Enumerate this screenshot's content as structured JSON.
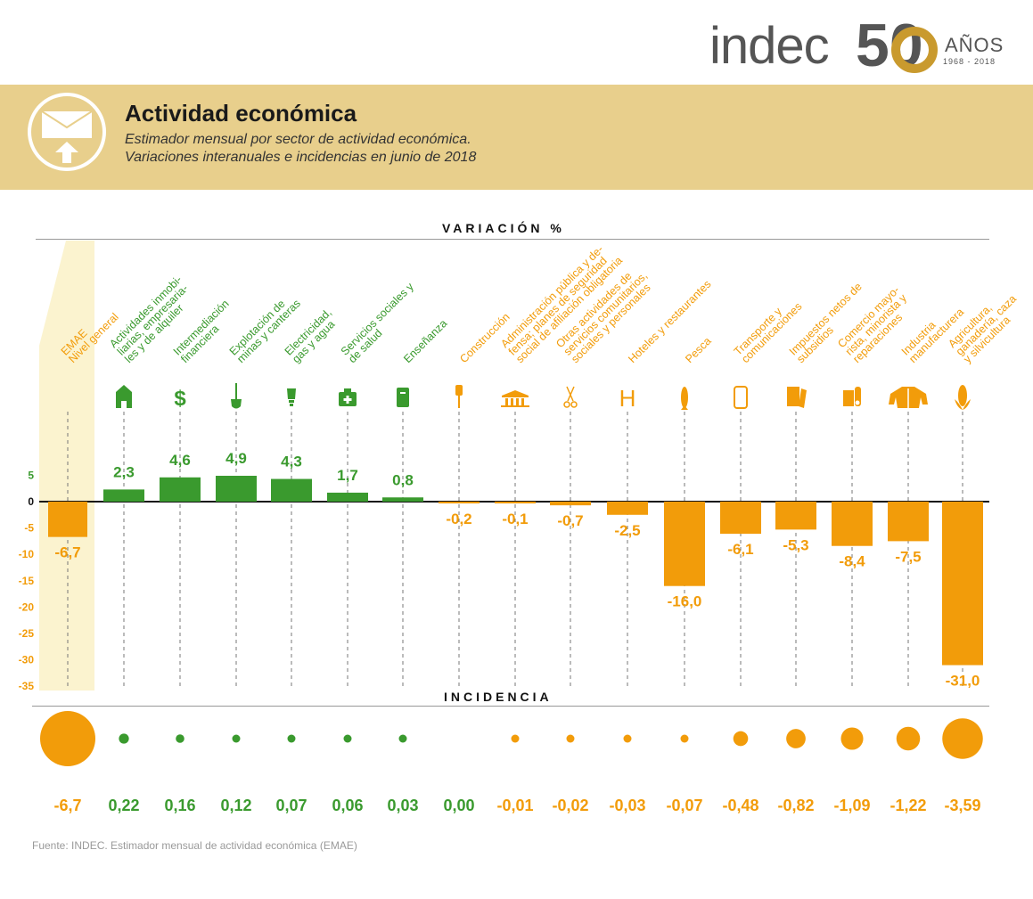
{
  "header": {
    "logo_text": "indec",
    "anniversary_number": "50",
    "anniversary_label": "AÑOS",
    "anniversary_years": "1968 - 2018"
  },
  "banner": {
    "title": "Actividad económica",
    "subtitle_line1": "Estimador mensual por sector de actividad económica.",
    "subtitle_line2": "Variaciones interanuales e incidencias en junio de 2018"
  },
  "sections": {
    "variation": "VARIACIÓN %",
    "incidence": "INCIDENCIA"
  },
  "source": "Fuente: INDEC. Estimador mensual de actividad económica (EMAE)",
  "colors": {
    "positive": "#3a9a2e",
    "negative": "#f29c0a",
    "highlight_band": "#fbf3cf",
    "banner": "#e8cf8c"
  },
  "chart_data": {
    "type": "bar",
    "ylim": [
      -35,
      5
    ],
    "yticks": [
      "5",
      "0",
      "-5",
      "-10",
      "-15",
      "-20",
      "-25",
      "-30",
      "-35"
    ],
    "categories": [
      {
        "label": [
          "EMAE",
          "Nivel general"
        ],
        "icon": "",
        "variation": -6.7,
        "variation_label": "-6,7",
        "incidence": -6.7,
        "incidence_label": "-6,7"
      },
      {
        "label": [
          "Actividades inmobi-",
          "liarias, empresaria-",
          "les y de alquiler"
        ],
        "icon": "building-icon",
        "variation": 2.3,
        "variation_label": "2,3",
        "incidence": 0.22,
        "incidence_label": "0,22"
      },
      {
        "label": [
          "Intermediación",
          "financiera"
        ],
        "icon": "dollar-icon",
        "variation": 4.6,
        "variation_label": "4,6",
        "incidence": 0.16,
        "incidence_label": "0,16"
      },
      {
        "label": [
          "Explotación de",
          "minas y canteras"
        ],
        "icon": "shovel-icon",
        "variation": 4.9,
        "variation_label": "4,9",
        "incidence": 0.12,
        "incidence_label": "0,12"
      },
      {
        "label": [
          "Electricidad,",
          "gas y agua"
        ],
        "icon": "lightbulb-icon",
        "variation": 4.3,
        "variation_label": "4,3",
        "incidence": 0.07,
        "incidence_label": "0,07"
      },
      {
        "label": [
          "Servicios sociales y",
          "de salud"
        ],
        "icon": "medical-kit-icon",
        "variation": 1.7,
        "variation_label": "1,7",
        "incidence": 0.06,
        "incidence_label": "0,06"
      },
      {
        "label": [
          "Enseñanza"
        ],
        "icon": "book-icon",
        "variation": 0.8,
        "variation_label": "0,8",
        "incidence": 0.03,
        "incidence_label": "0,03"
      },
      {
        "label": [
          "Construcción"
        ],
        "icon": "drill-icon",
        "variation": -0.2,
        "variation_label": "-0,2",
        "incidence": 0.0,
        "incidence_label": "0,00"
      },
      {
        "label": [
          "Administración pública y de-",
          "fensa; planes de seguridad",
          "social de afiliación obligatoria"
        ],
        "icon": "government-building-icon",
        "variation": -0.1,
        "variation_label": "-0,1",
        "incidence": -0.01,
        "incidence_label": "-0,01"
      },
      {
        "label": [
          "Otras actividades de",
          "servicios comunitarios,",
          "sociales y personales"
        ],
        "icon": "scissors-icon",
        "variation": -0.7,
        "variation_label": "-0,7",
        "incidence": -0.02,
        "incidence_label": "-0,02"
      },
      {
        "label": [
          "Hoteles y restaurantes"
        ],
        "icon": "hotel-icon",
        "variation": -2.5,
        "variation_label": "-2,5",
        "incidence": -0.03,
        "incidence_label": "-0,03"
      },
      {
        "label": [
          "Pesca"
        ],
        "icon": "fish-icon",
        "variation": -16.0,
        "variation_label": "-16,0",
        "incidence": -0.07,
        "incidence_label": "-0,07"
      },
      {
        "label": [
          "Transporte y",
          "comunicaciones"
        ],
        "icon": "phone-icon",
        "variation": -6.1,
        "variation_label": "-6,1",
        "incidence": -0.48,
        "incidence_label": "-0,48"
      },
      {
        "label": [
          "Impuestos netos de",
          "subsidios"
        ],
        "icon": "documents-icon",
        "variation": -5.3,
        "variation_label": "-5,3",
        "incidence": -0.82,
        "incidence_label": "-0,82"
      },
      {
        "label": [
          "Comercio mayo-",
          "rista, minorista y",
          "reparaciones"
        ],
        "icon": "shop-icon",
        "variation": -8.4,
        "variation_label": "-8,4",
        "incidence": -1.09,
        "incidence_label": "-1,09"
      },
      {
        "label": [
          "Industria",
          "manufacturera"
        ],
        "icon": "jacket-icon",
        "variation": -7.5,
        "variation_label": "-7,5",
        "incidence": -1.22,
        "incidence_label": "-1,22"
      },
      {
        "label": [
          "Agricultura,",
          "ganadería, caza",
          "y silvicultura"
        ],
        "icon": "corn-icon",
        "variation": -31.0,
        "variation_label": "-31,0",
        "incidence": -3.59,
        "incidence_label": "-3,59"
      }
    ]
  }
}
